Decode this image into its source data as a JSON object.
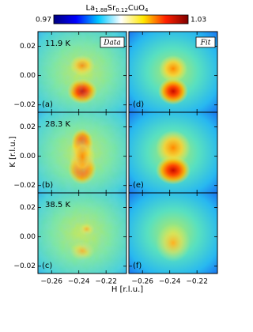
{
  "chart_data": {
    "type": "heatmap",
    "colorbar": {
      "title_parts": [
        "La",
        "1.88",
        "Sr",
        "0.12",
        "CuO",
        "4"
      ],
      "lim": [
        0.97,
        1.03
      ],
      "ticks": [
        0.97,
        1.03
      ],
      "colors": [
        "#00007f",
        "#0000ff",
        "#00c8ff",
        "#ffffff",
        "#ffe800",
        "#ff2000",
        "#7f0000"
      ]
    },
    "xlabel": "H [r.l.u.]",
    "ylabel": "K [r.l.u.]",
    "xlim": [
      -0.27,
      -0.205
    ],
    "ylim": [
      -0.025,
      0.03
    ],
    "xticks": [
      {
        "value": -0.26,
        "label": "−0.26"
      },
      {
        "value": -0.24,
        "label": "−0.24"
      },
      {
        "value": -0.22,
        "label": "−0.22"
      }
    ],
    "yticks": [
      0.02,
      {
        "value": 0,
        "label": "0.00"
      },
      {
        "value": -0.02,
        "label": "−0.02"
      }
    ],
    "panels": [
      {
        "label": "(a)",
        "temperature": "11.9 K",
        "tag": "Data"
      },
      {
        "label": "(d)",
        "tag": "Fit"
      },
      {
        "label": "(b)",
        "temperature": "28.3 K"
      },
      {
        "label": "(e)"
      },
      {
        "label": "(c)",
        "temperature": "38.5 K"
      },
      {
        "label": "(f)"
      }
    ]
  }
}
